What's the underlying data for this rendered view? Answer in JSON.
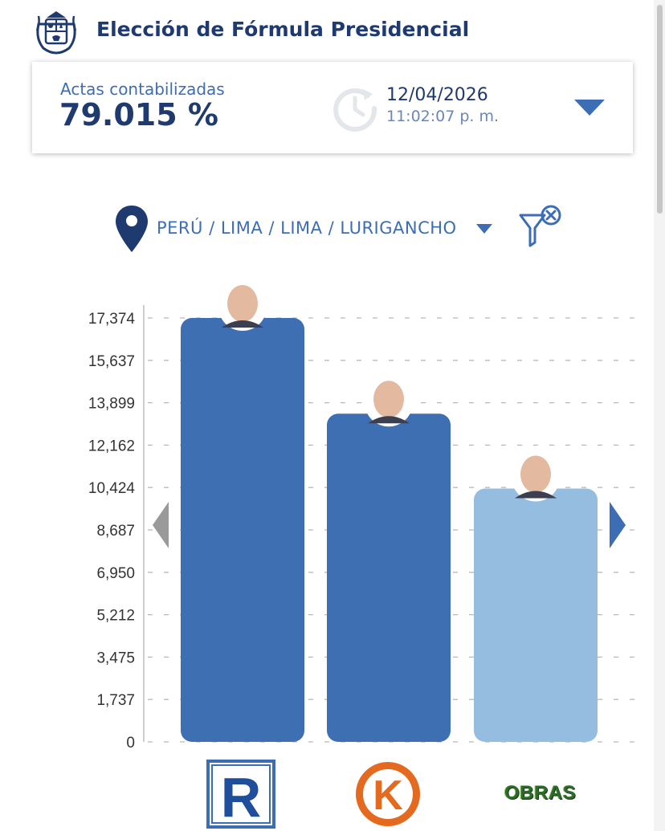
{
  "header": {
    "title": "Elección de Fórmula Presidencial"
  },
  "summary": {
    "actas_label": "Actas contabilizadas",
    "actas_value": "79.015 %",
    "date": "12/04/2026",
    "time": "11:02:07 p. m."
  },
  "location": {
    "path": "PERÚ / LIMA / LIMA / LURIGANCHO"
  },
  "colors": {
    "primary_navy": "#1f3a6e",
    "accent_blue": "#3d6db5",
    "bar_dark": "#3e6fb2",
    "bar_light": "#95bde0",
    "obras_green": "#2e6b2a",
    "k_orange": "#e46a1f"
  },
  "icons": {
    "seal": "peru-coat-of-arms-icon",
    "clock": "history-clock-icon",
    "dropdown": "caret-down-icon",
    "location": "map-pin-icon",
    "filter": "filter-clear-icon",
    "prev": "chevron-left-icon",
    "next": "chevron-right-icon"
  },
  "logos": {
    "r_letter": "R",
    "k_letter": "K",
    "obras_text": "OBRAS"
  },
  "chart_data": {
    "type": "bar",
    "title": "",
    "xlabel": "",
    "ylabel": "",
    "ylim": [
      0,
      17374
    ],
    "yticks": [
      "0",
      "1,737",
      "3,475",
      "5,212",
      "6,950",
      "8,687",
      "10,424",
      "12,162",
      "13,899",
      "15,637",
      "17,374"
    ],
    "grid": true,
    "legend": "none",
    "categories": [
      "R",
      "K",
      "OBRAS"
    ],
    "values": [
      17374,
      13450,
      10380
    ],
    "bar_colors": [
      "#3e6fb2",
      "#3e6fb2",
      "#95bde0"
    ]
  }
}
